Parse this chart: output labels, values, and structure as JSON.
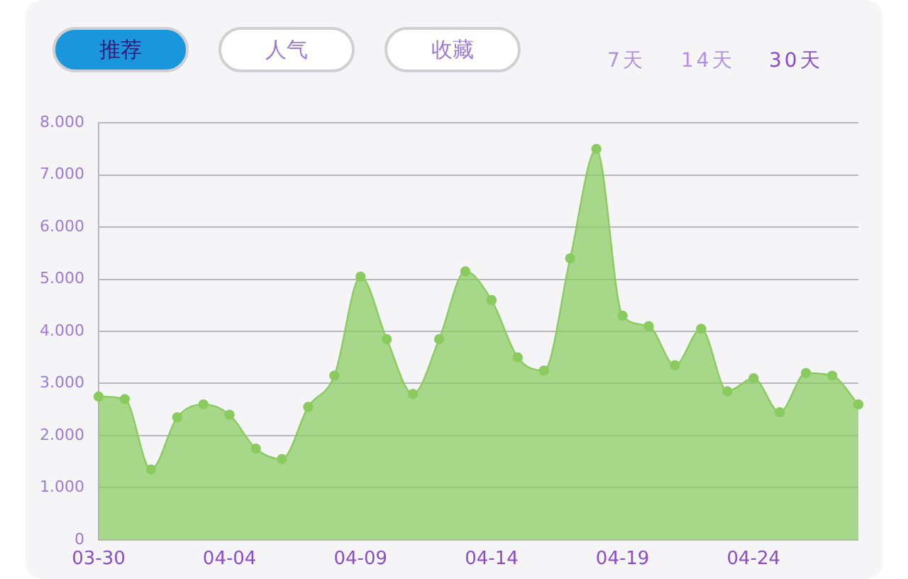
{
  "chart_data": {
    "type": "area",
    "categories": [
      "03-30",
      null,
      null,
      null,
      null,
      "04-04",
      null,
      null,
      null,
      null,
      "04-09",
      null,
      null,
      null,
      null,
      "04-14",
      null,
      null,
      null,
      null,
      "04-19",
      null,
      null,
      null,
      null,
      "04-24",
      null,
      null,
      null,
      null
    ],
    "series": [
      {
        "color": "#8acb5f",
        "values": [
          2750,
          2700,
          1350,
          2350,
          2600,
          2400,
          1750,
          1550,
          2550,
          3150,
          5050,
          3850,
          2800,
          3850,
          5150,
          4600,
          3500,
          3250,
          5400,
          7500,
          4300,
          4100,
          3350,
          4050,
          2850,
          3100,
          2450,
          3200,
          3150,
          2600
        ]
      }
    ],
    "ylim": [
      0,
      8000
    ],
    "yticks": [
      0,
      {
        "value": 1000,
        "label": "1.000"
      },
      {
        "value": 2000,
        "label": "2.000"
      },
      {
        "value": 3000,
        "label": "3.000"
      },
      {
        "value": 4000,
        "label": "4.000"
      },
      {
        "value": 5000,
        "label": "5.000"
      },
      {
        "value": 6000,
        "label": "6.000"
      },
      {
        "value": 7000,
        "label": "7.000"
      },
      {
        "value": 8000,
        "label": "8.000"
      }
    ],
    "grid": "y",
    "marker": "circle",
    "legend": false,
    "annotations": [
      "推荐",
      "人气",
      "收藏",
      "7天",
      "14天",
      "30天"
    ]
  }
}
